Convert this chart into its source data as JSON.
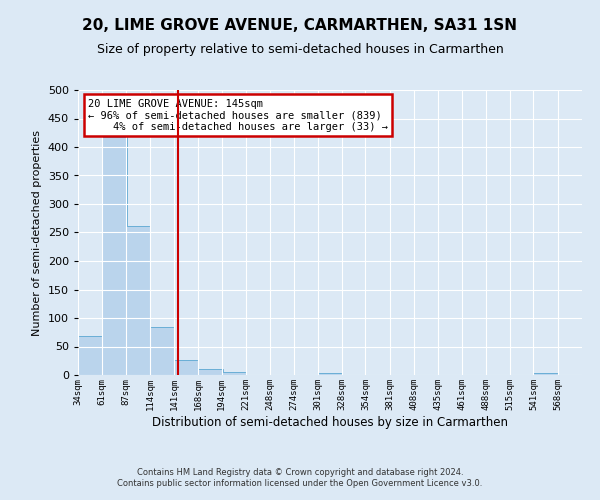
{
  "title": "20, LIME GROVE AVENUE, CARMARTHEN, SA31 1SN",
  "subtitle": "Size of property relative to semi-detached houses in Carmarthen",
  "xlabel": "Distribution of semi-detached houses by size in Carmarthen",
  "ylabel": "Number of semi-detached properties",
  "bin_labels": [
    "34sqm",
    "61sqm",
    "87sqm",
    "114sqm",
    "141sqm",
    "168sqm",
    "194sqm",
    "221sqm",
    "248sqm",
    "274sqm",
    "301sqm",
    "328sqm",
    "354sqm",
    "381sqm",
    "408sqm",
    "435sqm",
    "461sqm",
    "488sqm",
    "515sqm",
    "541sqm",
    "568sqm"
  ],
  "bin_edges": [
    34,
    61,
    87,
    114,
    141,
    168,
    194,
    221,
    248,
    274,
    301,
    328,
    354,
    381,
    408,
    435,
    461,
    488,
    515,
    541,
    568
  ],
  "bar_heights": [
    68,
    418,
    261,
    85,
    26,
    10,
    5,
    0,
    0,
    0,
    4,
    0,
    0,
    0,
    0,
    0,
    0,
    0,
    0,
    4,
    0
  ],
  "bar_color": "#bad4ec",
  "bar_edgecolor": "#6aaed6",
  "vline_x": 145,
  "vline_color": "#cc0000",
  "ylim": [
    0,
    500
  ],
  "yticks": [
    0,
    50,
    100,
    150,
    200,
    250,
    300,
    350,
    400,
    450,
    500
  ],
  "annotation_title": "20 LIME GROVE AVENUE: 145sqm",
  "annotation_line1": "← 96% of semi-detached houses are smaller (839)",
  "annotation_line2": "    4% of semi-detached houses are larger (33) →",
  "annotation_box_facecolor": "#ffffff",
  "annotation_box_edgecolor": "#cc0000",
  "footer_line1": "Contains HM Land Registry data © Crown copyright and database right 2024.",
  "footer_line2": "Contains public sector information licensed under the Open Government Licence v3.0.",
  "background_color": "#dce9f5",
  "plot_bg_color": "#dce9f5",
  "grid_color": "#ffffff",
  "title_fontsize": 11,
  "subtitle_fontsize": 9
}
